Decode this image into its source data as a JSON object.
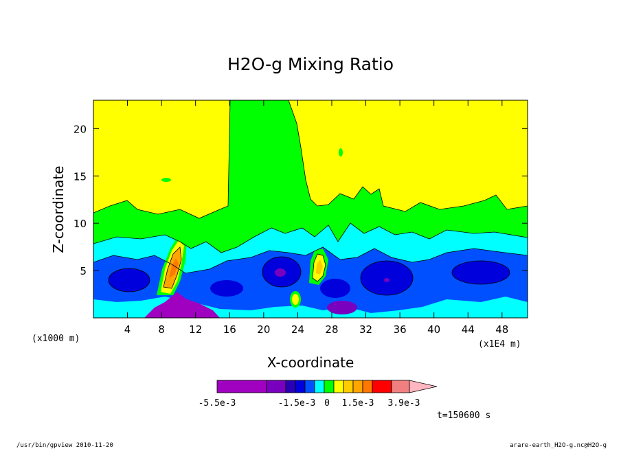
{
  "chart_data": {
    "type": "heatmap",
    "title": "H2O-g Mixing Ratio",
    "xlabel": "X-coordinate",
    "ylabel": "Z-coordinate",
    "x_unit_left": "(x1000 m)",
    "x_unit_right": "(x1E4 m)",
    "x_ticks": [
      4,
      8,
      12,
      16,
      20,
      24,
      28,
      32,
      36,
      40,
      44,
      48
    ],
    "y_ticks": [
      5,
      10,
      15,
      20
    ],
    "xlim": [
      0,
      51
    ],
    "ylim": [
      0,
      23
    ],
    "colorbar": {
      "colors": [
        "#a000c0",
        "#7a00c0",
        "#2a00b4",
        "#0000dc",
        "#0050ff",
        "#00ffff",
        "#00ff00",
        "#ffff00",
        "#ffcc00",
        "#ffa500",
        "#ff7800",
        "#ff0000",
        "#f08080",
        "#ffb6c1"
      ],
      "labels": [
        "-5.5e-3",
        "-1.5e-3",
        "0",
        "1.5e-3",
        "3.9e-3"
      ]
    },
    "time_label": "t=150600 s",
    "grid": false
  },
  "footer": {
    "left": "/usr/bin/gpview  2010-11-20",
    "right": "arare-earth_H2O-g.nc@H2O-g"
  }
}
